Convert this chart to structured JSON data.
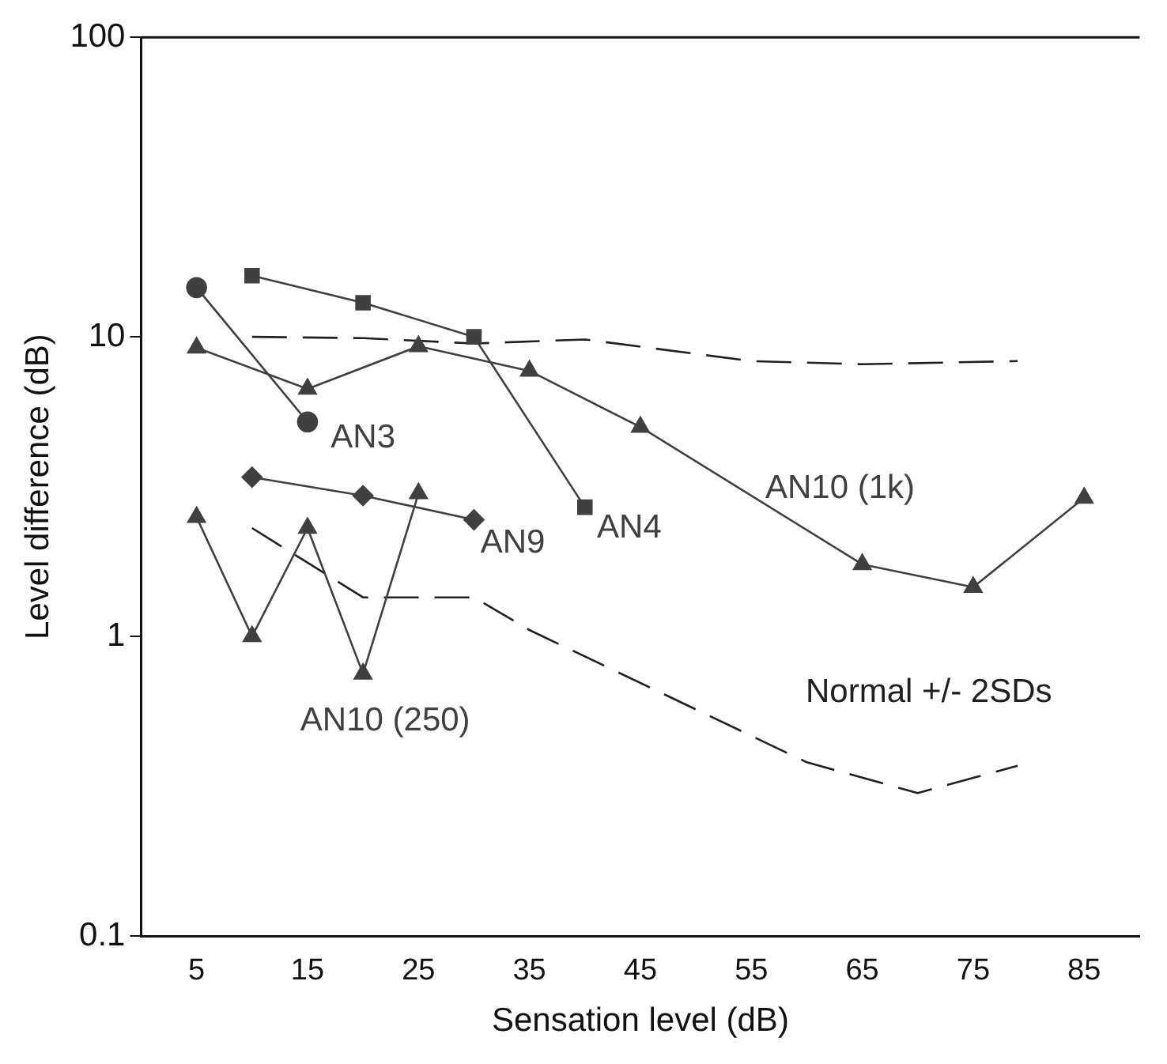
{
  "chart_data": {
    "type": "line",
    "xlabel": "Sensation level (dB)",
    "ylabel": "Level difference (dB)",
    "log": "y",
    "xlim": [
      0,
      90
    ],
    "xticks": [
      5,
      15,
      25,
      35,
      45,
      55,
      65,
      75,
      85
    ],
    "ylim": [
      0.1,
      100
    ],
    "yticks": [
      0.1,
      1,
      10,
      100
    ],
    "grid": false,
    "legend": false,
    "series": [
      {
        "name": "AN3",
        "color": "#404040",
        "marker": "circle",
        "x": [
          5,
          15
        ],
        "values": [
          14.6,
          5.2
        ]
      },
      {
        "name": "AN4",
        "color": "#404040",
        "marker": "square",
        "x": [
          10,
          20,
          30,
          40
        ],
        "values": [
          16,
          13,
          10,
          2.7
        ]
      },
      {
        "name": "AN9",
        "color": "#404040",
        "marker": "diamond",
        "x": [
          10,
          20,
          30
        ],
        "values": [
          3.4,
          2.95,
          2.45
        ]
      },
      {
        "name": "AN10 (1k)",
        "color": "#404040",
        "marker": "triangle",
        "x": [
          5,
          15,
          25,
          35,
          45,
          65,
          75,
          85
        ],
        "values": [
          9.2,
          6.7,
          9.3,
          7.7,
          5.0,
          1.74,
          1.46,
          2.9
        ]
      },
      {
        "name": "AN10 (250)",
        "color": "#404040",
        "marker": "triangle",
        "x": [
          5,
          10,
          15,
          20,
          25
        ],
        "values": [
          2.5,
          1.0,
          2.3,
          0.75,
          3.0
        ]
      },
      {
        "color": "#202020",
        "marker": "none",
        "line_style": "dashed",
        "x": [
          10,
          20,
          30,
          40,
          55,
          65,
          79
        ],
        "values": [
          10,
          9.9,
          9.5,
          9.8,
          8.3,
          8.1,
          8.3
        ]
      },
      {
        "name": "Normal +/- 2SDs",
        "color": "#202020",
        "marker": "none",
        "line_style": "dashed",
        "x": [
          10,
          20,
          30,
          35,
          60,
          70,
          79
        ],
        "values": [
          2.3,
          1.35,
          1.35,
          1.05,
          0.38,
          0.3,
          0.37
        ]
      }
    ]
  }
}
